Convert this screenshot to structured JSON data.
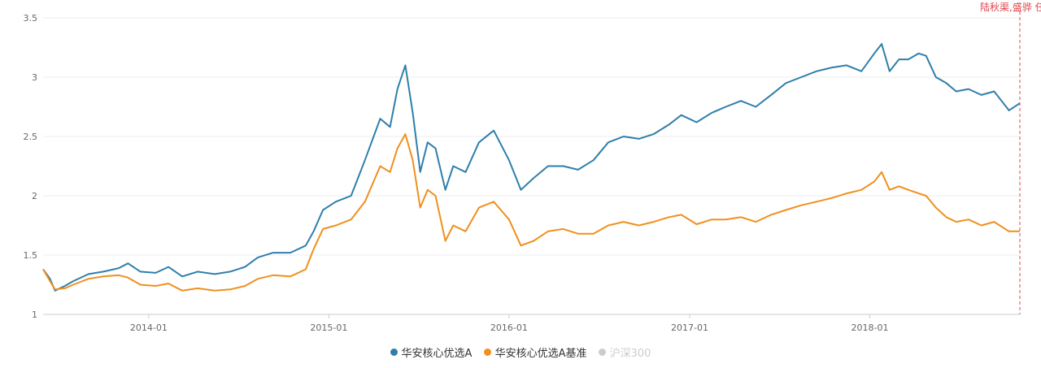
{
  "chart_data": {
    "type": "line",
    "title": "",
    "xlabel": "",
    "ylabel": "",
    "ylim": [
      1,
      3.5
    ],
    "yticks": [
      "1",
      "1.5",
      "2",
      "2.5",
      "3",
      "3.5"
    ],
    "xticks": [
      "2014-01",
      "2015-01",
      "2016-01",
      "2017-01",
      "2018-01"
    ],
    "xrange": [
      "2013-06-01",
      "2018-11-01"
    ],
    "grid": true,
    "legend_position": "bottom-center",
    "marker_line": {
      "x": "2018-11-01",
      "label": "陆秋渠,盛骅 任",
      "color": "#e0454b"
    },
    "series": [
      {
        "name": "华安核心优选A",
        "color": "#2e7fab",
        "points": [
          [
            "2013-06-01",
            1.38
          ],
          [
            "2013-06-15",
            1.3
          ],
          [
            "2013-06-25",
            1.2
          ],
          [
            "2013-07-15",
            1.24
          ],
          [
            "2013-08-01",
            1.28
          ],
          [
            "2013-09-01",
            1.34
          ],
          [
            "2013-10-01",
            1.36
          ],
          [
            "2013-11-01",
            1.39
          ],
          [
            "2013-11-20",
            1.43
          ],
          [
            "2013-12-15",
            1.36
          ],
          [
            "2014-01-15",
            1.35
          ],
          [
            "2014-02-10",
            1.4
          ],
          [
            "2014-03-10",
            1.32
          ],
          [
            "2014-04-10",
            1.36
          ],
          [
            "2014-05-15",
            1.34
          ],
          [
            "2014-06-15",
            1.36
          ],
          [
            "2014-07-15",
            1.4
          ],
          [
            "2014-08-10",
            1.48
          ],
          [
            "2014-09-10",
            1.52
          ],
          [
            "2014-10-15",
            1.52
          ],
          [
            "2014-11-15",
            1.58
          ],
          [
            "2014-12-01",
            1.7
          ],
          [
            "2014-12-20",
            1.88
          ],
          [
            "2015-01-15",
            1.95
          ],
          [
            "2015-02-15",
            2.0
          ],
          [
            "2015-03-15",
            2.3
          ],
          [
            "2015-04-15",
            2.65
          ],
          [
            "2015-05-05",
            2.58
          ],
          [
            "2015-05-20",
            2.9
          ],
          [
            "2015-06-05",
            3.1
          ],
          [
            "2015-06-20",
            2.7
          ],
          [
            "2015-07-05",
            2.2
          ],
          [
            "2015-07-20",
            2.45
          ],
          [
            "2015-08-05",
            2.4
          ],
          [
            "2015-08-25",
            2.05
          ],
          [
            "2015-09-10",
            2.25
          ],
          [
            "2015-10-05",
            2.2
          ],
          [
            "2015-11-01",
            2.45
          ],
          [
            "2015-12-01",
            2.55
          ],
          [
            "2016-01-01",
            2.3
          ],
          [
            "2016-01-25",
            2.05
          ],
          [
            "2016-02-20",
            2.15
          ],
          [
            "2016-03-20",
            2.25
          ],
          [
            "2016-04-20",
            2.25
          ],
          [
            "2016-05-20",
            2.22
          ],
          [
            "2016-06-20",
            2.3
          ],
          [
            "2016-07-20",
            2.45
          ],
          [
            "2016-08-20",
            2.5
          ],
          [
            "2016-09-20",
            2.48
          ],
          [
            "2016-10-20",
            2.52
          ],
          [
            "2016-11-20",
            2.6
          ],
          [
            "2016-12-15",
            2.68
          ],
          [
            "2017-01-15",
            2.62
          ],
          [
            "2017-02-15",
            2.7
          ],
          [
            "2017-03-15",
            2.75
          ],
          [
            "2017-04-15",
            2.8
          ],
          [
            "2017-05-15",
            2.75
          ],
          [
            "2017-06-15",
            2.85
          ],
          [
            "2017-07-15",
            2.95
          ],
          [
            "2017-08-15",
            3.0
          ],
          [
            "2017-09-15",
            3.05
          ],
          [
            "2017-10-15",
            3.08
          ],
          [
            "2017-11-15",
            3.1
          ],
          [
            "2017-12-15",
            3.05
          ],
          [
            "2018-01-10",
            3.2
          ],
          [
            "2018-01-25",
            3.28
          ],
          [
            "2018-02-10",
            3.05
          ],
          [
            "2018-03-01",
            3.15
          ],
          [
            "2018-03-20",
            3.15
          ],
          [
            "2018-04-10",
            3.2
          ],
          [
            "2018-04-25",
            3.18
          ],
          [
            "2018-05-15",
            3.0
          ],
          [
            "2018-06-05",
            2.95
          ],
          [
            "2018-06-25",
            2.88
          ],
          [
            "2018-07-20",
            2.9
          ],
          [
            "2018-08-15",
            2.85
          ],
          [
            "2018-09-10",
            2.88
          ],
          [
            "2018-10-10",
            2.72
          ],
          [
            "2018-11-01",
            2.78
          ]
        ]
      },
      {
        "name": "华安核心优选A基准",
        "color": "#f0901e",
        "points": [
          [
            "2013-06-01",
            1.38
          ],
          [
            "2013-06-15",
            1.28
          ],
          [
            "2013-06-25",
            1.21
          ],
          [
            "2013-07-15",
            1.22
          ],
          [
            "2013-08-01",
            1.25
          ],
          [
            "2013-09-01",
            1.3
          ],
          [
            "2013-10-01",
            1.32
          ],
          [
            "2013-11-01",
            1.33
          ],
          [
            "2013-11-20",
            1.31
          ],
          [
            "2013-12-15",
            1.25
          ],
          [
            "2014-01-15",
            1.24
          ],
          [
            "2014-02-10",
            1.26
          ],
          [
            "2014-03-10",
            1.2
          ],
          [
            "2014-04-10",
            1.22
          ],
          [
            "2014-05-15",
            1.2
          ],
          [
            "2014-06-15",
            1.21
          ],
          [
            "2014-07-15",
            1.24
          ],
          [
            "2014-08-10",
            1.3
          ],
          [
            "2014-09-10",
            1.33
          ],
          [
            "2014-10-15",
            1.32
          ],
          [
            "2014-11-15",
            1.38
          ],
          [
            "2014-12-01",
            1.55
          ],
          [
            "2014-12-20",
            1.72
          ],
          [
            "2015-01-15",
            1.75
          ],
          [
            "2015-02-15",
            1.8
          ],
          [
            "2015-03-15",
            1.95
          ],
          [
            "2015-04-15",
            2.25
          ],
          [
            "2015-05-05",
            2.2
          ],
          [
            "2015-05-20",
            2.4
          ],
          [
            "2015-06-05",
            2.52
          ],
          [
            "2015-06-20",
            2.3
          ],
          [
            "2015-07-05",
            1.9
          ],
          [
            "2015-07-20",
            2.05
          ],
          [
            "2015-08-05",
            2.0
          ],
          [
            "2015-08-25",
            1.62
          ],
          [
            "2015-09-10",
            1.75
          ],
          [
            "2015-10-05",
            1.7
          ],
          [
            "2015-11-01",
            1.9
          ],
          [
            "2015-12-01",
            1.95
          ],
          [
            "2016-01-01",
            1.8
          ],
          [
            "2016-01-25",
            1.58
          ],
          [
            "2016-02-20",
            1.62
          ],
          [
            "2016-03-20",
            1.7
          ],
          [
            "2016-04-20",
            1.72
          ],
          [
            "2016-05-20",
            1.68
          ],
          [
            "2016-06-20",
            1.68
          ],
          [
            "2016-07-20",
            1.75
          ],
          [
            "2016-08-20",
            1.78
          ],
          [
            "2016-09-20",
            1.75
          ],
          [
            "2016-10-20",
            1.78
          ],
          [
            "2016-11-20",
            1.82
          ],
          [
            "2016-12-15",
            1.84
          ],
          [
            "2017-01-15",
            1.76
          ],
          [
            "2017-02-15",
            1.8
          ],
          [
            "2017-03-15",
            1.8
          ],
          [
            "2017-04-15",
            1.82
          ],
          [
            "2017-05-15",
            1.78
          ],
          [
            "2017-06-15",
            1.84
          ],
          [
            "2017-07-15",
            1.88
          ],
          [
            "2017-08-15",
            1.92
          ],
          [
            "2017-09-15",
            1.95
          ],
          [
            "2017-10-15",
            1.98
          ],
          [
            "2017-11-15",
            2.02
          ],
          [
            "2017-12-15",
            2.05
          ],
          [
            "2018-01-10",
            2.12
          ],
          [
            "2018-01-25",
            2.2
          ],
          [
            "2018-02-10",
            2.05
          ],
          [
            "2018-03-01",
            2.08
          ],
          [
            "2018-03-20",
            2.05
          ],
          [
            "2018-04-10",
            2.02
          ],
          [
            "2018-04-25",
            2.0
          ],
          [
            "2018-05-15",
            1.9
          ],
          [
            "2018-06-05",
            1.82
          ],
          [
            "2018-06-25",
            1.78
          ],
          [
            "2018-07-20",
            1.8
          ],
          [
            "2018-08-15",
            1.75
          ],
          [
            "2018-09-10",
            1.78
          ],
          [
            "2018-10-10",
            1.7
          ],
          [
            "2018-11-01",
            1.7
          ]
        ]
      },
      {
        "name": "沪深300",
        "color": "#cccccc",
        "visible": false,
        "points": []
      }
    ]
  }
}
